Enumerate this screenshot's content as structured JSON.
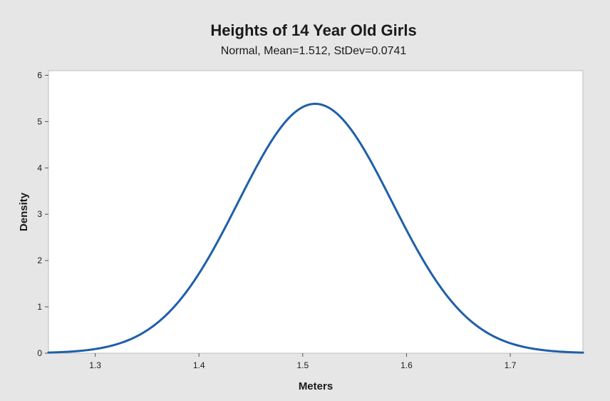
{
  "chart_data": {
    "type": "line",
    "title": "Heights of 14 Year Old Girls",
    "subtitle": "Normal, Mean=1.512, StDev=0.0741",
    "xlabel": "Meters",
    "ylabel": "Density",
    "distribution": "normal",
    "mean": 1.512,
    "stdev": 0.0741,
    "xlim": [
      1.255,
      1.77
    ],
    "ylim": [
      0,
      6.1
    ],
    "xticks": [
      1.3,
      1.4,
      1.5,
      1.6,
      1.7
    ],
    "xtick_labels": [
      "1.3",
      "1.4",
      "1.5",
      "1.6",
      "1.7"
    ],
    "yticks": [
      0,
      1,
      2,
      3,
      4,
      5,
      6
    ],
    "ytick_labels": [
      "0",
      "1",
      "2",
      "3",
      "4",
      "5",
      "6"
    ],
    "grid": false,
    "legend": "none",
    "series": [
      {
        "x": [
          1.26,
          1.3,
          1.35,
          1.4,
          1.45,
          1.5,
          1.512,
          1.55,
          1.6,
          1.65,
          1.7,
          1.75,
          1.77
        ],
        "values": [
          0.03,
          0.09,
          0.48,
          1.71,
          3.8,
          5.33,
          5.38,
          4.82,
          2.69,
          0.95,
          0.21,
          0.03,
          0.01
        ]
      }
    ],
    "colors": {
      "line": "#1f5fa8",
      "plot_bg": "#ffffff",
      "frame": "#bfbfbf",
      "page_bg": "#e6e6e6"
    }
  }
}
